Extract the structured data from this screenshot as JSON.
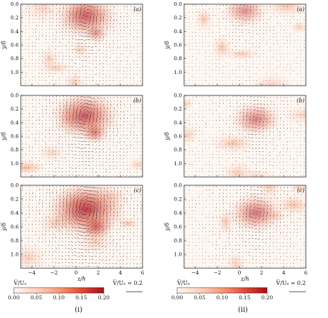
{
  "panels": [
    {
      "column": "i",
      "letter": "(a)"
    },
    {
      "column": "i",
      "letter": "(b)"
    },
    {
      "column": "i",
      "letter": "(c)"
    },
    {
      "column": "ii",
      "letter": "(a)"
    },
    {
      "column": "ii",
      "letter": "(b)"
    },
    {
      "column": "ii",
      "letter": "(c)"
    }
  ],
  "axes": {
    "ylabel": "y/δ",
    "xlabel": "z/h",
    "yticks": [
      "0.0",
      "0.2",
      "0.4",
      "0.6",
      "0.8",
      "1.0"
    ],
    "xticks": [
      "−4",
      "−2",
      "0",
      "2",
      "4",
      "6"
    ],
    "xlim": [
      -5,
      6
    ],
    "ylim": [
      1.2,
      0.0
    ]
  },
  "colorbar": {
    "label": "V̅/Uₑ",
    "ticks": [
      "0.00",
      "0.05",
      "0.10",
      "0.15",
      "0.20"
    ],
    "range": [
      0.0,
      0.2
    ],
    "colors": [
      "#fff5f0",
      "#fcd2bf",
      "#f89a79",
      "#e14a35",
      "#a50f15"
    ]
  },
  "reference_vector": {
    "label": "V̅/Uₑ = 0.2"
  },
  "column_labels": [
    "(i)",
    "(ii)"
  ],
  "vortex_field": {
    "panel_i_a": {
      "cz": 0.9,
      "cy": 0.18,
      "strength": 0.7
    },
    "panel_i_b": {
      "cz": 0.8,
      "cy": 0.3,
      "strength": 0.8
    },
    "panel_i_c": {
      "cz": 0.9,
      "cy": 0.35,
      "strength": 1.0
    },
    "panel_ii_a": {
      "cz": 0.5,
      "cy": 0.1,
      "strength": 0.35
    },
    "panel_ii_b": {
      "cz": 1.5,
      "cy": 0.35,
      "strength": 0.45
    },
    "panel_ii_c": {
      "cz": 1.5,
      "cy": 0.4,
      "strength": 0.55
    }
  }
}
